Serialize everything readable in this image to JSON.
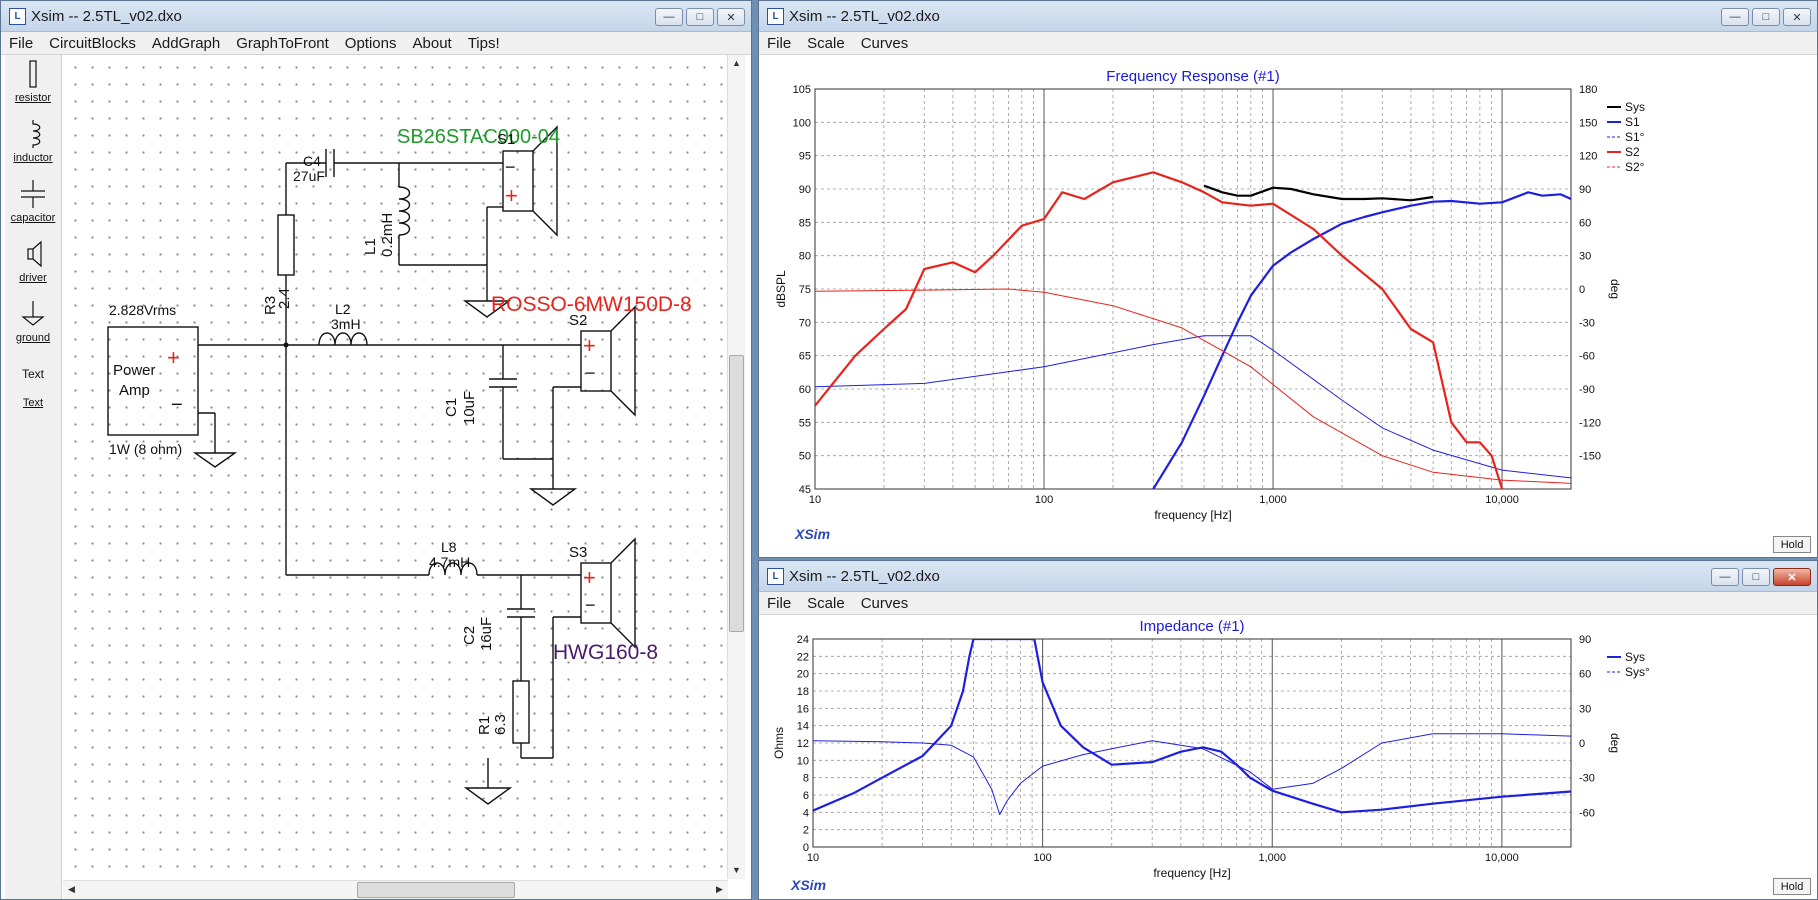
{
  "schematic_window": {
    "title": "Xsim -- 2.5TL_v02.dxo",
    "menu": [
      "File",
      "CircuitBlocks",
      "AddGraph",
      "GraphToFront",
      "Options",
      "About",
      "Tips!"
    ],
    "palette": [
      {
        "label": "resistor",
        "icon": "resistor-icon"
      },
      {
        "label": "inductor",
        "icon": "inductor-icon"
      },
      {
        "label": "capacitor",
        "icon": "capacitor-icon"
      },
      {
        "label": "driver",
        "icon": "driver-icon"
      },
      {
        "label": "ground",
        "icon": "ground-icon"
      },
      {
        "label": "Text",
        "icon": "text-icon"
      },
      {
        "label": "Text",
        "icon": "text-link-icon"
      }
    ],
    "labels": {
      "woofer_title": "SB26STAC000-04",
      "mid_title": "ROSSO-6MW150D-8",
      "bass_title": "HWG160-8",
      "amp_voltage": "2.828Vrms",
      "amp_name_1": "Power",
      "amp_name_2": "Amp",
      "amp_power": "1W (8 ohm)",
      "c4_name": "C4",
      "c4_value": "27uF",
      "l1_name": "L1",
      "l1_value": "0.2mH",
      "r3_name": "R3",
      "r3_value": "2.4",
      "l2_name": "L2",
      "l2_value": "3mH",
      "c1_name": "C1",
      "c1_value": "10uF",
      "l8_name": "L8",
      "l8_value": "4.7mH",
      "c2_name": "C2",
      "c2_value": "16uF",
      "r1_name": "R1",
      "r1_value": "6.3",
      "s1": "S1",
      "s2": "S2",
      "s3": "S3",
      "plus": "+",
      "minus": "−"
    },
    "colors": {
      "woofer": "#1f9a2a",
      "mid": "#e8231c",
      "bass": "#4a1a6e",
      "polarity": "#e8231c"
    }
  },
  "freq_window": {
    "title": "Xsim -- 2.5TL_v02.dxo",
    "menu": [
      "File",
      "Scale",
      "Curves"
    ],
    "hold_label": "Hold",
    "brand": "XSim",
    "chart_data": {
      "type": "line",
      "title": "Frequency Response (#1)",
      "xlabel": "frequency [Hz]",
      "ylabel": "dBSPL",
      "y2label": "deg",
      "xscale": "log",
      "xlim": [
        10,
        20000
      ],
      "ylim": [
        45,
        105
      ],
      "y2lim": [
        -180,
        180
      ],
      "x_ticks": [
        "10",
        "100",
        "1,000",
        "10,000"
      ],
      "y_ticks": [
        "45",
        "50",
        "55",
        "60",
        "65",
        "70",
        "75",
        "80",
        "85",
        "90",
        "95",
        "100",
        "105"
      ],
      "y2_ticks": [
        "-150",
        "-120",
        "-90",
        "-60",
        "-30",
        "0",
        "30",
        "60",
        "90",
        "120",
        "150",
        "180"
      ],
      "legend_position": "top-right",
      "series": [
        {
          "name": "Sys",
          "axis": "y",
          "style": "solid",
          "color": "#000000",
          "x": [
            500,
            600,
            700,
            800,
            1000,
            1200,
            1500,
            2000,
            2500,
            3000,
            4000,
            5000
          ],
          "y": [
            90.5,
            89.5,
            89.0,
            89.0,
            90.2,
            90.0,
            89.2,
            88.5,
            88.5,
            88.6,
            88.3,
            88.8
          ]
        },
        {
          "name": "S1",
          "axis": "y",
          "style": "solid",
          "color": "#1f1fe0",
          "x": [
            300,
            400,
            500,
            600,
            700,
            800,
            1000,
            1200,
            1500,
            2000,
            2500,
            3000,
            4000,
            5000,
            6000,
            8000,
            10000,
            13000,
            15000,
            18000,
            20000
          ],
          "y": [
            45,
            52,
            59,
            65,
            70,
            74,
            78.5,
            80.5,
            82.5,
            84.8,
            85.8,
            86.5,
            87.5,
            88.1,
            88.2,
            87.8,
            88.0,
            89.5,
            89.0,
            89.2,
            88.5
          ]
        },
        {
          "name": "S1°",
          "axis": "y2",
          "style": "thin",
          "color": "#1f1fe0",
          "x": [
            10,
            30,
            100,
            300,
            500,
            800,
            1000,
            2000,
            3000,
            5000,
            10000,
            20000
          ],
          "y": [
            -88,
            -85,
            -70,
            -50,
            -42,
            -42,
            -55,
            -100,
            -125,
            -145,
            -163,
            -170
          ]
        },
        {
          "name": "S2",
          "axis": "y",
          "style": "solid",
          "color": "#e8231c",
          "x": [
            10,
            15,
            20,
            25,
            30,
            40,
            50,
            60,
            80,
            100,
            120,
            150,
            200,
            300,
            400,
            500,
            600,
            800,
            1000,
            1500,
            2000,
            3000,
            4000,
            5000,
            6000,
            7000,
            8000,
            9000,
            10000
          ],
          "y": [
            57.5,
            65,
            69,
            72,
            78,
            79,
            77.5,
            80,
            84.5,
            85.5,
            89.5,
            88.5,
            91,
            92.5,
            91,
            89.5,
            88,
            87.5,
            87.8,
            84,
            80,
            75,
            69,
            67,
            55,
            52,
            52,
            50,
            45
          ]
        },
        {
          "name": "S2°",
          "axis": "y2",
          "style": "thin",
          "color": "#e8231c",
          "x": [
            10,
            30,
            70,
            100,
            200,
            400,
            800,
            1500,
            3000,
            5000,
            10000,
            20000
          ],
          "y": [
            -2,
            -1,
            0,
            -3,
            -15,
            -35,
            -70,
            -115,
            -150,
            -165,
            -172,
            -175
          ]
        }
      ],
      "legend": [
        {
          "name": "Sys",
          "style": "solid",
          "color": "#000000"
        },
        {
          "name": "S1",
          "style": "solid",
          "color": "#1f1fe0"
        },
        {
          "name": "S1°",
          "style": "dashed",
          "color": "#1f1fe0"
        },
        {
          "name": "S2",
          "style": "solid",
          "color": "#e8231c"
        },
        {
          "name": "S2°",
          "style": "dashed",
          "color": "#e8231c"
        }
      ]
    }
  },
  "imp_window": {
    "title": "Xsim -- 2.5TL_v02.dxo",
    "menu": [
      "File",
      "Scale",
      "Curves"
    ],
    "hold_label": "Hold",
    "brand": "XSim",
    "chart_data": {
      "type": "line",
      "title": "Impedance (#1)",
      "xlabel": "frequency [Hz]",
      "ylabel": "Ohms",
      "y2label": "deg",
      "xscale": "log",
      "xlim": [
        10,
        20000
      ],
      "ylim": [
        0,
        24
      ],
      "y2lim": [
        -90,
        90
      ],
      "x_ticks": [
        "10",
        "100",
        "1,000",
        "10,000"
      ],
      "y_ticks": [
        "0",
        "2",
        "4",
        "6",
        "8",
        "10",
        "12",
        "14",
        "16",
        "18",
        "20",
        "22",
        "24"
      ],
      "y2_ticks": [
        "-60",
        "-30",
        "0",
        "30",
        "60",
        "90"
      ],
      "legend_position": "top-right",
      "series": [
        {
          "name": "Sys",
          "axis": "y",
          "style": "solid",
          "color": "#1f1fe0",
          "x": [
            10,
            15,
            20,
            30,
            40,
            45,
            48,
            50,
            52,
            60,
            70,
            80,
            90,
            92,
            100,
            120,
            150,
            200,
            300,
            400,
            500,
            600,
            700,
            800,
            1000,
            1500,
            2000,
            3000,
            5000,
            10000,
            20000
          ],
          "y": [
            4.2,
            6.2,
            8,
            10.5,
            14,
            18,
            22,
            24,
            24,
            24,
            24,
            24,
            24,
            24,
            19,
            14,
            11.5,
            9.5,
            9.8,
            11,
            11.5,
            11,
            9.5,
            8,
            6.5,
            5,
            4,
            4.3,
            5,
            5.8,
            6.4
          ]
        },
        {
          "name": "Sys°",
          "axis": "y2",
          "style": "thin",
          "color": "#1f1fe0",
          "x": [
            10,
            20,
            30,
            40,
            50,
            60,
            65,
            70,
            80,
            100,
            150,
            200,
            300,
            500,
            800,
            1000,
            1500,
            2000,
            3000,
            5000,
            10000,
            20000
          ],
          "y": [
            2,
            1,
            0,
            -2,
            -12,
            -40,
            -62,
            -50,
            -35,
            -20,
            -10,
            -5,
            2,
            -5,
            -25,
            -40,
            -35,
            -22,
            0,
            8,
            8,
            6
          ]
        }
      ],
      "legend": [
        {
          "name": "Sys",
          "style": "solid",
          "color": "#1f1fe0"
        },
        {
          "name": "Sys°",
          "style": "dashed",
          "color": "#1f1fe0"
        }
      ]
    }
  }
}
